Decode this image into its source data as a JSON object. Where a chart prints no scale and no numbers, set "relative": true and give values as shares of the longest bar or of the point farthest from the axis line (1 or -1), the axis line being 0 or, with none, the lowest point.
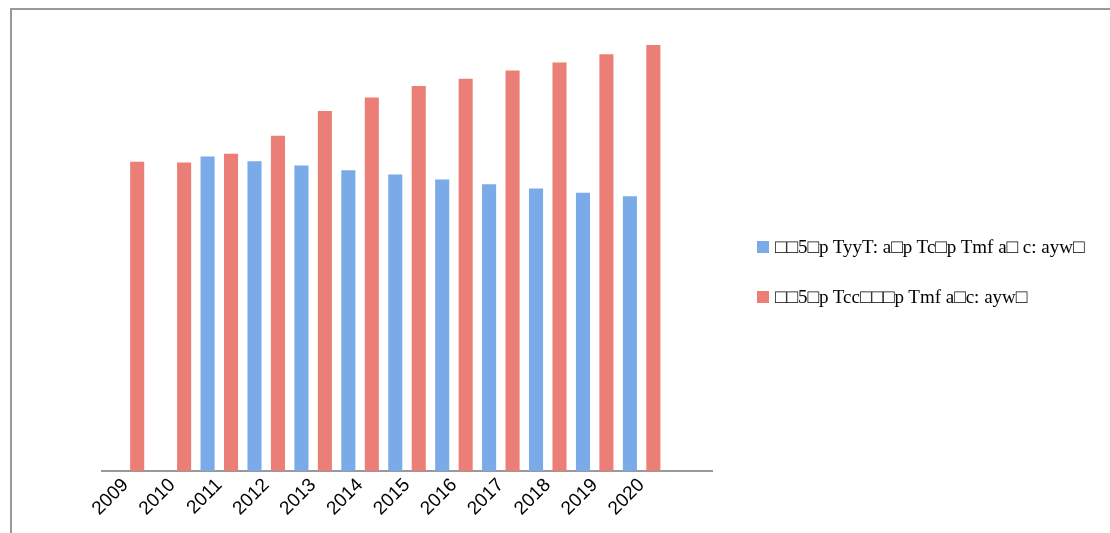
{
  "chart_data": {
    "type": "bar",
    "categories": [
      "2009",
      "2010",
      "2011",
      "2012",
      "2013",
      "2014",
      "2015",
      "2016",
      "2017",
      "2018",
      "2019",
      "2020",
      null
    ],
    "series": [
      {
        "name": "□□5□p TyyT: a□p Tc□p Tmf a□ c: ayw□",
        "color": "#7aaae8",
        "values": [
          null,
          null,
          0.738,
          0.727,
          0.717,
          0.706,
          0.696,
          0.684,
          0.673,
          0.663,
          0.653,
          0.645,
          null
        ]
      },
      {
        "name": "□□5□p Tcc□□□p Tmf a□c: ayw□",
        "color": "#ec7e78",
        "values": [
          0.726,
          0.724,
          0.745,
          0.787,
          0.845,
          0.877,
          0.904,
          0.921,
          0.94,
          0.959,
          0.978,
          1,
          null
        ]
      }
    ],
    "relative": true,
    "legend": "right"
  }
}
